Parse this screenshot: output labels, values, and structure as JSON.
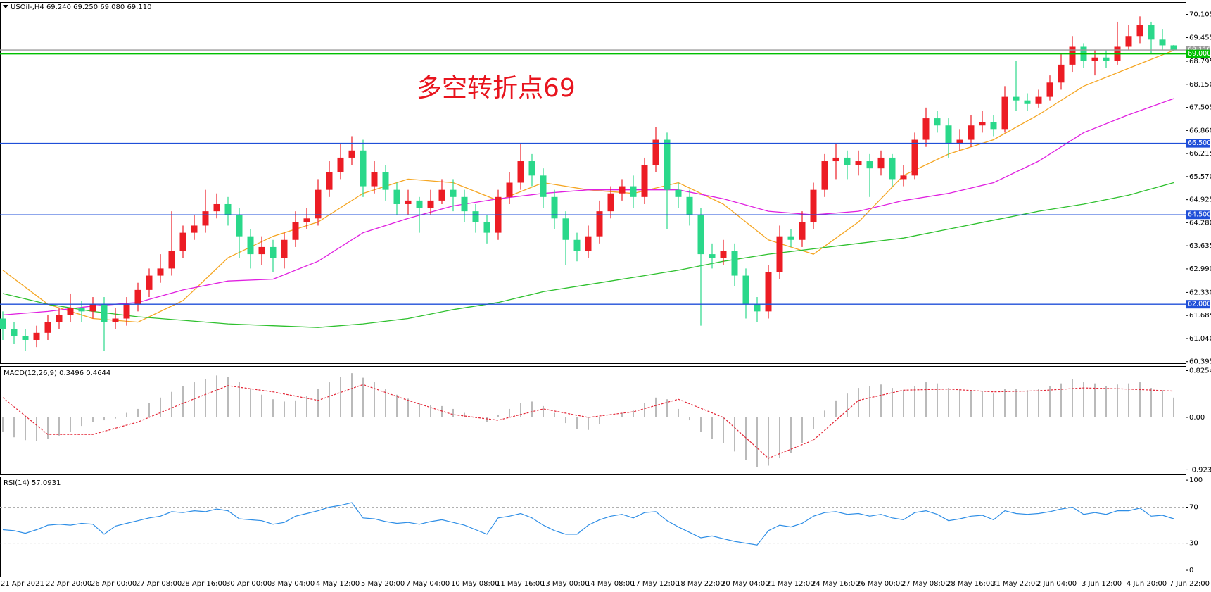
{
  "chart_data": [
    {
      "type": "candlestick",
      "title": "USOil-,H4  69.240 69.250 69.080 69.110",
      "annotation": "多空转折点69",
      "annotation_color": "#e8141e",
      "categories": [
        "21 Apr 2021",
        null,
        null,
        null,
        "22 Apr 20:00",
        null,
        null,
        null,
        "26 Apr 00:00",
        null,
        null,
        null,
        "27 Apr 08:00",
        null,
        null,
        null,
        "28 Apr 16:00",
        null,
        null,
        null,
        "30 Apr 00:00",
        null,
        null,
        null,
        "3 May 04:00",
        null,
        null,
        null,
        "4 May 12:00",
        null,
        null,
        null,
        "5 May 20:00",
        null,
        null,
        null,
        "7 May 04:00",
        null,
        null,
        null,
        "10 May 08:00",
        null,
        null,
        null,
        "11 May 16:00",
        null,
        null,
        null,
        "13 May 00:00",
        null,
        null,
        null,
        "14 May 08:00",
        null,
        null,
        null,
        "17 May 12:00",
        null,
        null,
        null,
        "18 May 22:00",
        null,
        null,
        null,
        "20 May 04:00",
        null,
        null,
        null,
        "21 May 12:00",
        null,
        null,
        null,
        "24 May 16:00",
        null,
        null,
        null,
        "26 May 00:00",
        null,
        null,
        null,
        "27 May 08:00",
        null,
        null,
        null,
        "28 May 16:00",
        null,
        null,
        null,
        "31 May 22:00",
        null,
        null,
        null,
        "2 Jun 04:00",
        null,
        null,
        null,
        "3 Jun 12:00",
        null,
        null,
        null,
        "4 Jun 20:00",
        null,
        null,
        null,
        "7 Jun 22:00"
      ],
      "open": [
        61.6,
        61.3,
        61.1,
        61.0,
        61.2,
        61.5,
        61.7,
        61.9,
        61.8,
        62.0,
        61.5,
        61.6,
        62.0,
        62.4,
        62.8,
        63.0,
        63.5,
        64.0,
        64.2,
        64.6,
        64.8,
        64.5,
        63.9,
        63.4,
        63.6,
        63.3,
        63.8,
        64.3,
        64.4,
        65.2,
        65.7,
        66.1,
        66.3,
        65.3,
        65.7,
        65.2,
        64.8,
        64.9,
        64.7,
        64.9,
        65.2,
        65.0,
        64.6,
        64.3,
        64.0,
        65.0,
        65.4,
        66.0,
        65.6,
        65.0,
        64.4,
        63.8,
        63.5,
        63.9,
        64.6,
        65.1,
        65.3,
        65.0,
        65.9,
        66.6,
        65.2,
        65.0,
        64.5,
        63.4,
        63.3,
        63.5,
        62.8,
        62.0,
        61.8,
        62.9,
        63.9,
        63.8,
        64.3,
        65.2,
        66.0,
        66.1,
        65.9,
        66.0,
        65.8,
        66.1,
        65.5,
        65.6,
        66.6,
        67.2,
        67.0,
        66.5,
        66.6,
        67.0,
        67.1,
        66.9,
        67.8,
        67.7,
        67.6,
        67.8,
        68.2,
        68.7,
        69.2,
        68.8,
        68.9,
        68.8,
        69.2,
        69.5,
        69.8,
        69.4,
        69.24
      ],
      "high": [
        61.8,
        61.5,
        61.3,
        61.4,
        61.7,
        61.9,
        62.3,
        62.1,
        62.2,
        62.2,
        61.9,
        62.2,
        62.6,
        63.0,
        63.4,
        64.6,
        64.2,
        64.5,
        65.2,
        65.1,
        65.0,
        64.7,
        64.1,
        63.9,
        63.8,
        64.0,
        64.6,
        64.7,
        65.5,
        66.0,
        66.5,
        66.7,
        66.6,
        66.0,
        65.9,
        65.4,
        65.2,
        65.0,
        65.2,
        65.5,
        65.5,
        65.2,
        64.8,
        64.5,
        65.2,
        65.7,
        66.5,
        66.2,
        65.8,
        65.2,
        64.6,
        64.0,
        64.2,
        64.9,
        65.3,
        65.5,
        65.6,
        66.1,
        66.95,
        66.8,
        65.4,
        65.2,
        64.7,
        63.7,
        63.8,
        63.7,
        63.0,
        62.2,
        63.1,
        64.2,
        64.1,
        64.6,
        65.4,
        66.2,
        66.5,
        66.3,
        66.3,
        66.2,
        66.3,
        66.2,
        65.9,
        66.8,
        67.5,
        67.4,
        67.2,
        66.9,
        67.3,
        67.4,
        67.3,
        68.1,
        68.8,
        67.9,
        68.0,
        68.4,
        69.0,
        69.5,
        69.3,
        69.1,
        69.1,
        69.9,
        69.8,
        70.05,
        69.9,
        69.7,
        69.25
      ],
      "low": [
        61.0,
        60.9,
        60.7,
        60.8,
        61.0,
        61.3,
        61.5,
        61.5,
        61.6,
        60.7,
        61.3,
        61.4,
        61.8,
        62.2,
        62.6,
        62.8,
        63.3,
        63.8,
        64.0,
        64.4,
        64.2,
        63.3,
        63.0,
        63.1,
        62.9,
        63.0,
        63.6,
        64.1,
        64.2,
        65.0,
        65.5,
        65.9,
        65.0,
        65.1,
        64.9,
        64.5,
        64.5,
        64.0,
        64.5,
        64.8,
        64.6,
        64.3,
        64.0,
        63.7,
        63.8,
        64.8,
        65.2,
        65.3,
        64.7,
        64.1,
        63.1,
        63.2,
        63.3,
        63.7,
        64.4,
        64.9,
        64.7,
        64.8,
        65.7,
        64.1,
        64.7,
        64.2,
        61.4,
        63.0,
        63.1,
        62.5,
        61.6,
        61.5,
        61.6,
        62.7,
        63.6,
        63.6,
        64.1,
        65.0,
        65.5,
        65.5,
        65.6,
        65.0,
        65.6,
        65.3,
        65.3,
        65.5,
        66.4,
        66.8,
        66.1,
        66.3,
        66.4,
        66.8,
        66.7,
        66.8,
        67.4,
        67.4,
        67.5,
        67.7,
        68.0,
        68.5,
        68.6,
        68.4,
        68.6,
        68.7,
        69.1,
        69.3,
        69.0,
        69.1,
        69.08
      ],
      "close": [
        61.3,
        61.1,
        61.0,
        61.2,
        61.5,
        61.7,
        61.9,
        61.8,
        62.0,
        61.5,
        61.6,
        62.0,
        62.4,
        62.8,
        63.0,
        63.5,
        64.0,
        64.2,
        64.6,
        64.8,
        64.5,
        63.9,
        63.4,
        63.6,
        63.3,
        63.8,
        64.3,
        64.4,
        65.2,
        65.7,
        66.1,
        66.3,
        65.3,
        65.7,
        65.2,
        64.8,
        64.9,
        64.7,
        64.9,
        65.2,
        65.0,
        64.6,
        64.3,
        64.0,
        65.0,
        65.4,
        66.0,
        65.6,
        65.0,
        64.4,
        63.8,
        63.5,
        63.9,
        64.6,
        65.1,
        65.3,
        65.0,
        65.9,
        66.6,
        65.2,
        65.0,
        64.5,
        63.4,
        63.3,
        63.5,
        62.8,
        62.0,
        61.8,
        62.9,
        63.9,
        63.8,
        64.3,
        65.2,
        66.0,
        66.1,
        65.9,
        66.0,
        65.8,
        66.1,
        65.5,
        65.6,
        66.6,
        67.2,
        67.0,
        66.5,
        66.6,
        67.0,
        67.1,
        66.9,
        67.8,
        67.7,
        67.6,
        67.8,
        68.2,
        68.7,
        69.2,
        68.8,
        68.9,
        68.8,
        69.2,
        69.5,
        69.8,
        69.4,
        69.24,
        69.11
      ],
      "up_color": "#ec1c24",
      "down_color": "#2ad88a",
      "line_x": [
        0,
        4,
        8,
        12,
        16,
        20,
        24,
        28,
        32,
        36,
        40,
        44,
        48,
        52,
        56,
        60,
        64,
        68,
        72,
        76,
        80,
        84,
        88,
        92,
        96,
        100,
        104
      ],
      "lines": [
        {
          "color": "#f5a623",
          "values": [
            62.95,
            62.0,
            61.6,
            61.5,
            62.1,
            63.3,
            63.9,
            64.3,
            65.1,
            65.5,
            65.4,
            64.9,
            65.4,
            65.2,
            65.1,
            65.4,
            64.8,
            63.8,
            63.4,
            64.3,
            65.6,
            66.2,
            66.6,
            67.3,
            68.1,
            68.6,
            69.1
          ]
        },
        {
          "color": "#e020e0",
          "values": [
            61.7,
            61.8,
            61.95,
            62.05,
            62.4,
            62.65,
            62.7,
            63.2,
            64.0,
            64.4,
            64.75,
            64.95,
            65.1,
            65.2,
            65.2,
            65.2,
            64.95,
            64.6,
            64.5,
            64.6,
            64.9,
            65.1,
            65.4,
            66.0,
            66.8,
            67.3,
            67.75
          ]
        },
        {
          "color": "#2ec02e",
          "values": [
            62.3,
            62.0,
            61.8,
            61.65,
            61.55,
            61.45,
            61.4,
            61.35,
            61.45,
            61.6,
            61.85,
            62.05,
            62.35,
            62.55,
            62.75,
            62.95,
            63.2,
            63.4,
            63.55,
            63.7,
            63.85,
            64.1,
            64.35,
            64.6,
            64.8,
            65.05,
            65.4
          ]
        }
      ],
      "levels": [
        {
          "value": 69.11,
          "label": "69.110",
          "color": "#9a9a9a"
        },
        {
          "value": 69,
          "label": "69.000",
          "color": "#00c000"
        },
        {
          "value": 66.5,
          "label": "66.500",
          "color": "#1f4fd8"
        },
        {
          "value": 64.5,
          "label": "64.500",
          "color": "#1f4fd8"
        },
        {
          "value": 62,
          "label": "62.000",
          "color": "#1f4fd8"
        }
      ],
      "ylim": [
        60.35,
        70.45
      ],
      "yticks": [
        70.105,
        69.455,
        68.795,
        {
          "value": 68.15,
          "label": "68.150"
        },
        67.505,
        {
          "value": 66.86,
          "label": "66.860"
        },
        66.215,
        {
          "value": 65.57,
          "label": "65.570"
        },
        64.925,
        {
          "value": 64.28,
          "label": "64.280"
        },
        63.635,
        {
          "value": 62.99,
          "label": "62.990"
        },
        {
          "value": 62.33,
          "label": "62.330"
        },
        61.685,
        {
          "value": 61.04,
          "label": "61.040"
        },
        60.395
      ]
    },
    {
      "type": "macd",
      "title": "MACD(12,26,9) 0.3496 0.4644",
      "color": "#a8a8a8",
      "values": [
        -0.25,
        -0.35,
        -0.4,
        -0.42,
        -0.38,
        -0.32,
        -0.25,
        -0.15,
        -0.08,
        -0.05,
        -0.02,
        0.08,
        0.15,
        0.25,
        0.35,
        0.45,
        0.55,
        0.62,
        0.68,
        0.74,
        0.72,
        0.62,
        0.5,
        0.4,
        0.32,
        0.28,
        0.3,
        0.38,
        0.5,
        0.62,
        0.72,
        0.78,
        0.7,
        0.62,
        0.5,
        0.4,
        0.33,
        0.25,
        0.22,
        0.2,
        0.15,
        0.08,
        0.0,
        -0.08,
        0.05,
        0.15,
        0.25,
        0.28,
        0.2,
        0.08,
        -0.1,
        -0.2,
        -0.22,
        -0.12,
        0.0,
        0.08,
        0.12,
        0.25,
        0.35,
        0.32,
        0.15,
        -0.05,
        -0.25,
        -0.38,
        -0.45,
        -0.6,
        -0.75,
        -0.88,
        -0.85,
        -0.72,
        -0.62,
        -0.45,
        -0.2,
        0.12,
        0.3,
        0.42,
        0.52,
        0.55,
        0.58,
        0.52,
        0.48,
        0.55,
        0.62,
        0.6,
        0.52,
        0.5,
        0.48,
        0.47,
        0.42,
        0.5,
        0.5,
        0.48,
        0.5,
        0.55,
        0.6,
        0.68,
        0.62,
        0.6,
        0.55,
        0.58,
        0.6,
        0.62,
        0.52,
        0.48,
        0.3496
      ],
      "signal": {
        "color": "#e32636",
        "x": [
          0,
          4,
          8,
          12,
          16,
          20,
          24,
          28,
          32,
          36,
          40,
          44,
          48,
          52,
          56,
          60,
          64,
          68,
          72,
          76,
          80,
          84,
          88,
          92,
          96,
          100,
          104
        ],
        "values": [
          0.35,
          -0.3,
          -0.3,
          -0.08,
          0.25,
          0.56,
          0.45,
          0.3,
          0.58,
          0.3,
          0.05,
          -0.05,
          0.15,
          0.0,
          0.1,
          0.32,
          0.0,
          -0.72,
          -0.4,
          0.3,
          0.48,
          0.5,
          0.45,
          0.47,
          0.52,
          0.5,
          0.4644
        ]
      },
      "ylim": [
        -1.005,
        0.906
      ],
      "yticks": [
        0.8254,
        {
          "value": 0,
          "label": "0.00"
        },
        -0.9234
      ]
    },
    {
      "type": "rsi",
      "title": "RSI(14) 57.0931",
      "color": "#2e8ee6",
      "values": [
        45,
        44,
        41,
        45,
        50,
        51,
        50,
        52,
        51,
        40,
        49,
        52,
        55,
        58,
        60,
        65,
        64,
        66,
        65,
        68,
        66,
        57,
        56,
        55,
        51,
        53,
        60,
        63,
        66,
        70,
        72,
        75,
        58,
        57,
        54,
        52,
        53,
        51,
        54,
        56,
        53,
        50,
        45,
        40,
        58,
        60,
        63,
        58,
        50,
        44,
        40,
        40,
        50,
        56,
        60,
        62,
        58,
        64,
        65,
        55,
        48,
        42,
        36,
        38,
        35,
        32,
        30,
        28,
        44,
        50,
        48,
        52,
        60,
        64,
        65,
        62,
        63,
        60,
        62,
        58,
        56,
        64,
        66,
        62,
        55,
        57,
        60,
        61,
        56,
        66,
        63,
        62,
        63,
        65,
        68,
        70,
        62,
        64,
        62,
        66,
        66,
        69,
        60,
        61,
        57.0931
      ],
      "levels": [
        30,
        70
      ],
      "ylim": [
        -7,
        104
      ],
      "yticks": [
        0,
        30,
        70,
        100
      ]
    }
  ]
}
